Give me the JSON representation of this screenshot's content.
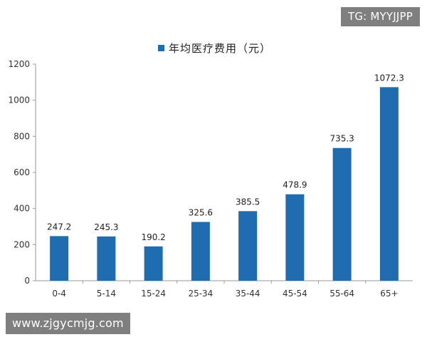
{
  "watermarks": {
    "top": "TG: MYYJJPP",
    "bottom": "www.zjgycmjg.com"
  },
  "colors": {
    "bar": "#1f6db0",
    "axis": "#9a9a9a"
  },
  "chart_data": {
    "type": "bar",
    "title": "",
    "xlabel": "",
    "ylabel": "",
    "categories": [
      "0-4",
      "5-14",
      "15-24",
      "25-34",
      "35-44",
      "45-54",
      "55-64",
      "65+"
    ],
    "series": [
      {
        "name": "年均医疗费用（元）",
        "values": [
          247.2,
          245.3,
          190.2,
          325.6,
          385.5,
          478.9,
          735.3,
          1072.3
        ],
        "labels": [
          "247.2",
          "245.3",
          "190.2",
          "325.6",
          "385.5",
          "478.9",
          "735.3",
          "1072.3"
        ]
      }
    ],
    "ylim": [
      0,
      1200
    ],
    "yticks": [
      0,
      200,
      400,
      600,
      800,
      1000,
      1200
    ],
    "grid": false,
    "legend_position": "top-center"
  }
}
